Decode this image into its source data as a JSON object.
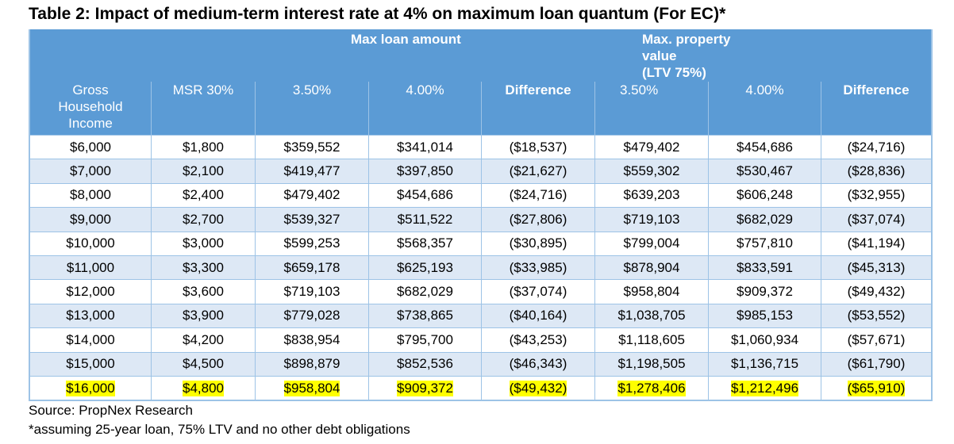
{
  "title": "Table 2: Impact of medium-term interest rate at 4% on maximum loan quantum (For EC)*",
  "header": {
    "group_loan": "Max loan amount",
    "group_property_l1": "Max. property",
    "group_property_l2": "value",
    "group_property_l3": "(LTV 75%)",
    "columns": [
      {
        "l1": "Gross",
        "l2": "Household",
        "l3": "Income"
      },
      {
        "l1": "MSR 30%"
      },
      {
        "l1": "3.50%"
      },
      {
        "l1": "4.00%"
      },
      {
        "l1": "Difference"
      },
      {
        "l1": "3.50%"
      },
      {
        "l1": "4.00%"
      },
      {
        "l1": "Difference"
      }
    ]
  },
  "rows": [
    [
      "$6,000",
      "$1,800",
      "$359,552",
      "$341,014",
      "($18,537)",
      "$479,402",
      "$454,686",
      "($24,716)"
    ],
    [
      "$7,000",
      "$2,100",
      "$419,477",
      "$397,850",
      "($21,627)",
      "$559,302",
      "$530,467",
      "($28,836)"
    ],
    [
      "$8,000",
      "$2,400",
      "$479,402",
      "$454,686",
      "($24,716)",
      "$639,203",
      "$606,248",
      "($32,955)"
    ],
    [
      "$9,000",
      "$2,700",
      "$539,327",
      "$511,522",
      "($27,806)",
      "$719,103",
      "$682,029",
      "($37,074)"
    ],
    [
      "$10,000",
      "$3,000",
      "$599,253",
      "$568,357",
      "($30,895)",
      "$799,004",
      "$757,810",
      "($41,194)"
    ],
    [
      "$11,000",
      "$3,300",
      "$659,178",
      "$625,193",
      "($33,985)",
      "$878,904",
      "$833,591",
      "($45,313)"
    ],
    [
      "$12,000",
      "$3,600",
      "$719,103",
      "$682,029",
      "($37,074)",
      "$958,804",
      "$909,372",
      "($49,432)"
    ],
    [
      "$13,000",
      "$3,900",
      "$779,028",
      "$738,865",
      "($40,164)",
      "$1,038,705",
      "$985,153",
      "($53,552)"
    ],
    [
      "$14,000",
      "$4,200",
      "$838,954",
      "$795,700",
      "($43,253)",
      "$1,118,605",
      "$1,060,934",
      "($57,671)"
    ],
    [
      "$15,000",
      "$4,500",
      "$898,879",
      "$852,536",
      "($46,343)",
      "$1,198,505",
      "$1,136,715",
      "($61,790)"
    ],
    [
      "$16,000",
      "$4,800",
      "$958,804",
      "$909,372",
      "($49,432)",
      "$1,278,406",
      "$1,212,496",
      "($65,910)"
    ]
  ],
  "highlighted_row_index": 10,
  "colors": {
    "header_bg": "#5b9bd5",
    "alt_row_bg": "#dde8f5",
    "grid": "#9dc3e6",
    "highlight": "#ffff00"
  },
  "footer": {
    "source": "Source: PropNex Research",
    "note": "*assuming 25-year loan, 75% LTV and no other debt obligations"
  }
}
